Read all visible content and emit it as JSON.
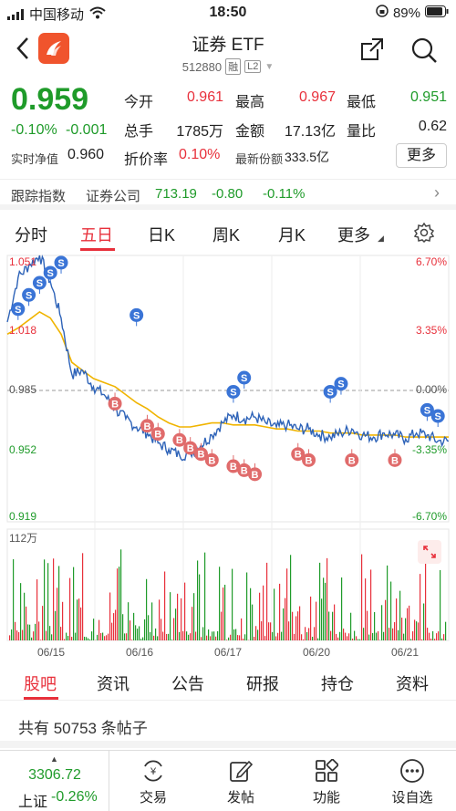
{
  "status": {
    "carrier": "中国移动",
    "time": "18:50",
    "battery": "89%"
  },
  "header": {
    "title": "证券 ETF",
    "code": "512880",
    "tag_margin": "融",
    "tag_level": "L2"
  },
  "quote": {
    "price": "0.959",
    "change_pct": "-0.10%",
    "change": "-0.001",
    "open_label": "今开",
    "open": "0.961",
    "high_label": "最高",
    "high": "0.967",
    "low_label": "最低",
    "low": "0.951",
    "vol_label": "总手",
    "vol": "1785万",
    "amount_label": "金额",
    "amount": "17.13亿",
    "ratio_label": "量比",
    "ratio": "0.62",
    "nav_label": "实时净值",
    "nav": "0.960",
    "discount_label": "折价率",
    "discount": "0.10%",
    "shares_label": "最新份额",
    "shares": "333.5亿",
    "more": "更多"
  },
  "tracking": {
    "label": "跟踪指数",
    "index": "证券公司",
    "value": "713.19",
    "change": "-0.80",
    "pct": "-0.11%"
  },
  "period_tabs": [
    {
      "label": "分时"
    },
    {
      "label": "五日"
    },
    {
      "label": "日K"
    },
    {
      "label": "周K"
    },
    {
      "label": "月K"
    },
    {
      "label": "更多"
    }
  ],
  "chart_data": {
    "type": "line",
    "y_labels_left": [
      "1.051",
      "1.018",
      "0.985",
      "0.952",
      "0.919"
    ],
    "y_labels_right": [
      "6.70%",
      "3.35%",
      "0.00%",
      "-3.35%",
      "-6.70%"
    ],
    "volume_label": "112万",
    "x_labels": [
      "06/15",
      "06/16",
      "06/17",
      "06/20",
      "06/21"
    ],
    "ylim": [
      0.919,
      1.051
    ],
    "ref_price": 0.985,
    "price_series": [
      1.018,
      1.04,
      1.046,
      1.051,
      1.038,
      1.02,
      0.992,
      0.994,
      0.986,
      0.982,
      0.975,
      0.97,
      0.966,
      0.963,
      0.958,
      0.955,
      0.952,
      0.953,
      0.957,
      0.962,
      0.968,
      0.972,
      0.97,
      0.971,
      0.968,
      0.966,
      0.967,
      0.965,
      0.965,
      0.962,
      0.961,
      0.963,
      0.965,
      0.962,
      0.961,
      0.963,
      0.962,
      0.96,
      0.963,
      0.962,
      0.959,
      0.959
    ],
    "avg_series": [
      1.012,
      1.015,
      1.019,
      1.023,
      1.02,
      1.012,
      0.998,
      0.994,
      0.99,
      0.988,
      0.986,
      0.982,
      0.978,
      0.975,
      0.971,
      0.968,
      0.966,
      0.966,
      0.967,
      0.968,
      0.968,
      0.967,
      0.967,
      0.967,
      0.966,
      0.965,
      0.965,
      0.964,
      0.964,
      0.964,
      0.963,
      0.963,
      0.963,
      0.962,
      0.962,
      0.962,
      0.962,
      0.961,
      0.961,
      0.961,
      0.961,
      0.961
    ],
    "markers_s": [
      [
        1,
        1.019
      ],
      [
        2,
        1.026
      ],
      [
        3,
        1.032
      ],
      [
        4,
        1.037
      ],
      [
        5,
        1.042
      ],
      [
        12,
        1.016
      ],
      [
        21,
        0.978
      ],
      [
        22,
        0.985
      ],
      [
        30,
        0.978
      ],
      [
        31,
        0.982
      ],
      [
        39,
        0.969
      ],
      [
        40,
        0.966
      ]
    ],
    "markers_b": [
      [
        10,
        0.983
      ],
      [
        13,
        0.972
      ],
      [
        14,
        0.968
      ],
      [
        16,
        0.965
      ],
      [
        17,
        0.961
      ],
      [
        18,
        0.958
      ],
      [
        19,
        0.955
      ],
      [
        21,
        0.952
      ],
      [
        22,
        0.95
      ],
      [
        23,
        0.948
      ],
      [
        27,
        0.958
      ],
      [
        28,
        0.955
      ],
      [
        32,
        0.955
      ],
      [
        36,
        0.955
      ]
    ]
  },
  "bottom_tabs": [
    {
      "label": "股吧"
    },
    {
      "label": "资讯"
    },
    {
      "label": "公告"
    },
    {
      "label": "研报"
    },
    {
      "label": "持仓"
    },
    {
      "label": "资料"
    }
  ],
  "posts": {
    "text": "共有 50753 条帖子"
  },
  "bottom_bar": {
    "index_value": "3306.72",
    "index_name": "上证",
    "index_pct": "-0.26%",
    "items": [
      {
        "label": "交易",
        "icon": "trade-icon"
      },
      {
        "label": "发帖",
        "icon": "edit-icon"
      },
      {
        "label": "功能",
        "icon": "grid-icon"
      },
      {
        "label": "设自选",
        "icon": "more-dots-icon"
      }
    ]
  },
  "colors": {
    "up": "#e8303b",
    "down": "#1f9b2a",
    "accent": "#e8303b",
    "line": "#2e63b8",
    "avg": "#f0b400"
  }
}
